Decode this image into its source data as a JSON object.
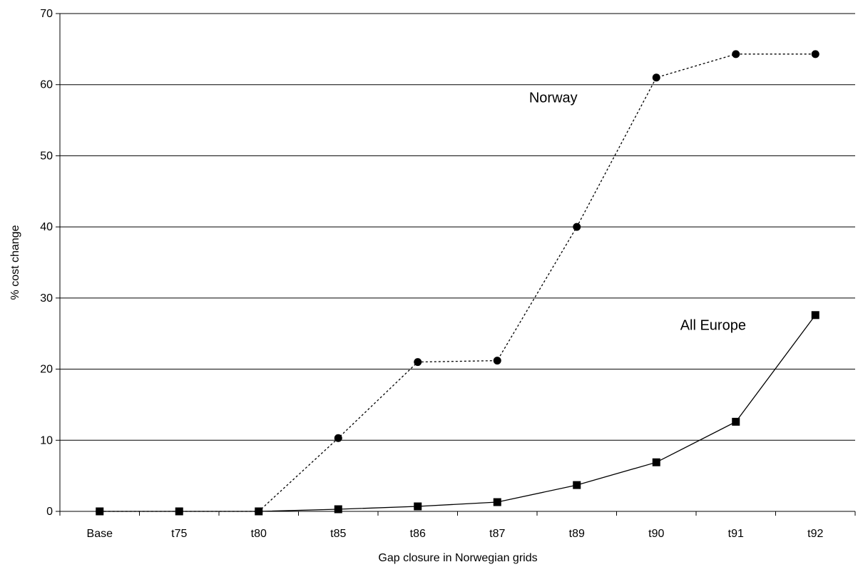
{
  "chart_data": {
    "type": "line",
    "title": "",
    "xlabel": "Gap closure in Norwegian grids",
    "ylabel": "% cost change",
    "ylim": [
      0,
      70
    ],
    "yticks": [
      0,
      10,
      20,
      30,
      40,
      50,
      60,
      70
    ],
    "grid": "horizontal",
    "categories": [
      "Base",
      "t75",
      "t80",
      "t85",
      "t86",
      "t87",
      "t89",
      "t90",
      "t91",
      "t92"
    ],
    "series": [
      {
        "name": "Norway",
        "values": [
          0,
          0,
          0,
          10.3,
          21.0,
          21.2,
          40.0,
          61.0,
          64.3,
          64.3
        ],
        "line_style": "dotted",
        "marker": "circle",
        "color": "#000000"
      },
      {
        "name": "All Europe",
        "values": [
          0,
          0,
          0,
          0.3,
          0.7,
          1.3,
          3.7,
          6.9,
          12.6,
          27.6
        ],
        "line_style": "solid",
        "marker": "square",
        "color": "#000000"
      }
    ],
    "annotations": [
      {
        "text": "Norway",
        "series": "Norway"
      },
      {
        "text": "All Europe",
        "series": "All Europe"
      }
    ]
  }
}
